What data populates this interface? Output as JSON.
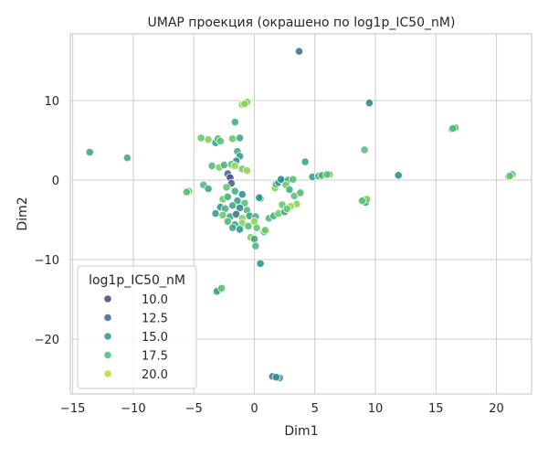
{
  "chart_data": {
    "type": "scatter",
    "title": "UMAP проекция (окрашено по log1p_IC50_nM)",
    "xlabel": "Dim1",
    "ylabel": "Dim2",
    "xlim": [
      -15.2,
      22.9
    ],
    "ylim": [
      -26.9,
      18.4
    ],
    "xticks": [
      -15,
      -10,
      -5,
      0,
      5,
      10,
      15,
      20
    ],
    "yticks": [
      -20,
      -10,
      0,
      10
    ],
    "grid": true,
    "legend": {
      "title": "log1p_IC50_nM",
      "placement": "lower-left",
      "entries": [
        {
          "label": "10.0",
          "color": "#462e7a"
        },
        {
          "label": "12.5",
          "color": "#34578f"
        },
        {
          "label": "15.0",
          "color": "#23918c"
        },
        {
          "label": "17.5",
          "color": "#37bd72"
        },
        {
          "label": "20.0",
          "color": "#aadc32"
        }
      ]
    },
    "points": [
      {
        "x": 3.7,
        "y": 16.2,
        "c": 13.6
      },
      {
        "x": 9.5,
        "y": 9.7,
        "c": 14.8
      },
      {
        "x": -0.6,
        "y": 9.8,
        "c": 19.2
      },
      {
        "x": -1.0,
        "y": 9.5,
        "c": 19.8
      },
      {
        "x": -0.8,
        "y": 9.6,
        "c": 20.0
      },
      {
        "x": -13.6,
        "y": 3.5,
        "c": 16.5
      },
      {
        "x": -10.5,
        "y": 2.8,
        "c": 17.0
      },
      {
        "x": 16.3,
        "y": 6.4,
        "c": 17.7
      },
      {
        "x": 16.6,
        "y": 6.6,
        "c": 17.4
      },
      {
        "x": 16.4,
        "y": 6.5,
        "c": 18.0
      },
      {
        "x": 9.1,
        "y": 3.8,
        "c": 18.2
      },
      {
        "x": 11.9,
        "y": 0.6,
        "c": 15.0
      },
      {
        "x": 21.0,
        "y": 0.4,
        "c": 18.6
      },
      {
        "x": 21.3,
        "y": 0.7,
        "c": 17.8
      },
      {
        "x": 21.1,
        "y": 0.5,
        "c": 19.0
      },
      {
        "x": -5.4,
        "y": -1.4,
        "c": 19.0
      },
      {
        "x": -5.6,
        "y": -1.5,
        "c": 18.4
      },
      {
        "x": 9.0,
        "y": -2.5,
        "c": 17.4
      },
      {
        "x": 9.2,
        "y": -2.8,
        "c": 16.2
      },
      {
        "x": 9.3,
        "y": -2.4,
        "c": 19.4
      },
      {
        "x": 8.9,
        "y": -2.6,
        "c": 18.6
      },
      {
        "x": 0.5,
        "y": -10.5,
        "c": 15.4
      },
      {
        "x": -2.9,
        "y": -13.8,
        "c": 17.6
      },
      {
        "x": -3.1,
        "y": -14.0,
        "c": 16.4
      },
      {
        "x": -2.7,
        "y": -13.6,
        "c": 18.6
      },
      {
        "x": 1.5,
        "y": -24.7,
        "c": 14.2
      },
      {
        "x": 2.1,
        "y": -24.9,
        "c": 16.8
      },
      {
        "x": 1.8,
        "y": -24.8,
        "c": 15.2
      },
      {
        "x": -1.6,
        "y": 7.3,
        "c": 17.2
      },
      {
        "x": -4.4,
        "y": 5.3,
        "c": 18.8
      },
      {
        "x": -3.8,
        "y": 5.1,
        "c": 19.6
      },
      {
        "x": -3.2,
        "y": 4.7,
        "c": 16.2
      },
      {
        "x": -3.0,
        "y": 5.2,
        "c": 17.6
      },
      {
        "x": -2.8,
        "y": 4.9,
        "c": 18.4
      },
      {
        "x": -1.8,
        "y": 5.2,
        "c": 18.8
      },
      {
        "x": -1.2,
        "y": 5.3,
        "c": 16.6
      },
      {
        "x": -1.4,
        "y": 3.6,
        "c": 17.0
      },
      {
        "x": -1.2,
        "y": 3.0,
        "c": 16.0
      },
      {
        "x": -1.5,
        "y": 2.4,
        "c": 14.8
      },
      {
        "x": -3.5,
        "y": 1.8,
        "c": 18.0
      },
      {
        "x": -2.9,
        "y": 1.6,
        "c": 19.4
      },
      {
        "x": -2.5,
        "y": 1.9,
        "c": 17.4
      },
      {
        "x": -1.9,
        "y": 2.0,
        "c": 18.6
      },
      {
        "x": -1.6,
        "y": 1.8,
        "c": 20.2
      },
      {
        "x": -1.0,
        "y": 1.4,
        "c": 19.2
      },
      {
        "x": -0.6,
        "y": 1.2,
        "c": 20.0
      },
      {
        "x": -2.2,
        "y": 0.8,
        "c": 13.2
      },
      {
        "x": -2.0,
        "y": 0.3,
        "c": 11.4
      },
      {
        "x": -1.9,
        "y": -0.4,
        "c": 12.6
      },
      {
        "x": -4.2,
        "y": -0.6,
        "c": 17.8
      },
      {
        "x": -3.8,
        "y": -1.1,
        "c": 16.6
      },
      {
        "x": -2.3,
        "y": -0.9,
        "c": 18.6
      },
      {
        "x": -1.6,
        "y": -1.4,
        "c": 17.2
      },
      {
        "x": -1.0,
        "y": -1.8,
        "c": 15.4
      },
      {
        "x": -2.6,
        "y": -2.4,
        "c": 19.2
      },
      {
        "x": -2.2,
        "y": -2.1,
        "c": 17.0
      },
      {
        "x": -1.4,
        "y": -2.6,
        "c": 16.2
      },
      {
        "x": -0.8,
        "y": -2.9,
        "c": 18.2
      },
      {
        "x": -2.8,
        "y": -3.4,
        "c": 15.8
      },
      {
        "x": -2.4,
        "y": -3.6,
        "c": 17.4
      },
      {
        "x": -1.8,
        "y": -3.2,
        "c": 16.8
      },
      {
        "x": -1.2,
        "y": -3.5,
        "c": 14.6
      },
      {
        "x": -0.6,
        "y": -3.8,
        "c": 17.6
      },
      {
        "x": -3.2,
        "y": -4.2,
        "c": 16.0
      },
      {
        "x": -2.6,
        "y": -4.4,
        "c": 18.8
      },
      {
        "x": -2.0,
        "y": -4.6,
        "c": 16.6
      },
      {
        "x": -1.5,
        "y": -4.3,
        "c": 13.8
      },
      {
        "x": -1.0,
        "y": -4.8,
        "c": 19.6
      },
      {
        "x": -0.4,
        "y": -4.5,
        "c": 16.2
      },
      {
        "x": 0.1,
        "y": -4.6,
        "c": 17.2
      },
      {
        "x": -2.2,
        "y": -5.2,
        "c": 17.8
      },
      {
        "x": -1.6,
        "y": -5.6,
        "c": 16.4
      },
      {
        "x": -1.0,
        "y": -5.4,
        "c": 19.8
      },
      {
        "x": -0.5,
        "y": -5.8,
        "c": 18.0
      },
      {
        "x": 0.0,
        "y": -5.2,
        "c": 20.0
      },
      {
        "x": -1.8,
        "y": -6.0,
        "c": 16.8
      },
      {
        "x": -1.2,
        "y": -6.2,
        "c": 15.6
      },
      {
        "x": 0.2,
        "y": -6.0,
        "c": 18.6
      },
      {
        "x": 0.8,
        "y": -6.5,
        "c": 17.0
      },
      {
        "x": 0.9,
        "y": -6.3,
        "c": 19.4
      },
      {
        "x": -0.3,
        "y": -7.2,
        "c": 19.6
      },
      {
        "x": 0.0,
        "y": -7.4,
        "c": 16.8
      },
      {
        "x": 0.1,
        "y": -8.3,
        "c": 17.6
      },
      {
        "x": 0.5,
        "y": -2.3,
        "c": 14.6
      },
      {
        "x": 0.4,
        "y": -2.2,
        "c": 16.0
      },
      {
        "x": 1.2,
        "y": -4.8,
        "c": 18.0
      },
      {
        "x": 1.6,
        "y": -4.5,
        "c": 17.2
      },
      {
        "x": 2.0,
        "y": -4.2,
        "c": 19.0
      },
      {
        "x": 2.5,
        "y": -4.0,
        "c": 16.4
      },
      {
        "x": 2.3,
        "y": -3.1,
        "c": 18.8
      },
      {
        "x": 1.7,
        "y": -1.0,
        "c": 19.8
      },
      {
        "x": 1.8,
        "y": -0.5,
        "c": 17.4
      },
      {
        "x": 2.0,
        "y": -0.3,
        "c": 16.0
      },
      {
        "x": 2.4,
        "y": -0.1,
        "c": 17.8
      },
      {
        "x": 2.8,
        "y": 0.0,
        "c": 16.6
      },
      {
        "x": 2.2,
        "y": 0.1,
        "c": 15.2
      },
      {
        "x": 3.2,
        "y": 0.1,
        "c": 18.2
      },
      {
        "x": 2.6,
        "y": -0.6,
        "c": 19.2
      },
      {
        "x": 2.9,
        "y": -1.2,
        "c": 17.0
      },
      {
        "x": 3.3,
        "y": -2.0,
        "c": 18.4
      },
      {
        "x": 3.5,
        "y": -3.0,
        "c": 19.8
      },
      {
        "x": 3.0,
        "y": -3.3,
        "c": 20.2
      },
      {
        "x": 2.7,
        "y": -3.6,
        "c": 19.0
      },
      {
        "x": 3.8,
        "y": -1.6,
        "c": 18.0
      },
      {
        "x": 4.2,
        "y": 2.3,
        "c": 16.4
      },
      {
        "x": 4.8,
        "y": 0.4,
        "c": 16.0
      },
      {
        "x": 5.3,
        "y": 0.5,
        "c": 17.6
      },
      {
        "x": 5.6,
        "y": 0.6,
        "c": 17.2
      },
      {
        "x": 6.2,
        "y": 0.7,
        "c": 18.0
      },
      {
        "x": 6.0,
        "y": 0.7,
        "c": 18.6
      }
    ]
  },
  "colors": {
    "axes_spine": "#cccccc",
    "grid": "#cccccc",
    "marker_edge": "#ffffff"
  }
}
